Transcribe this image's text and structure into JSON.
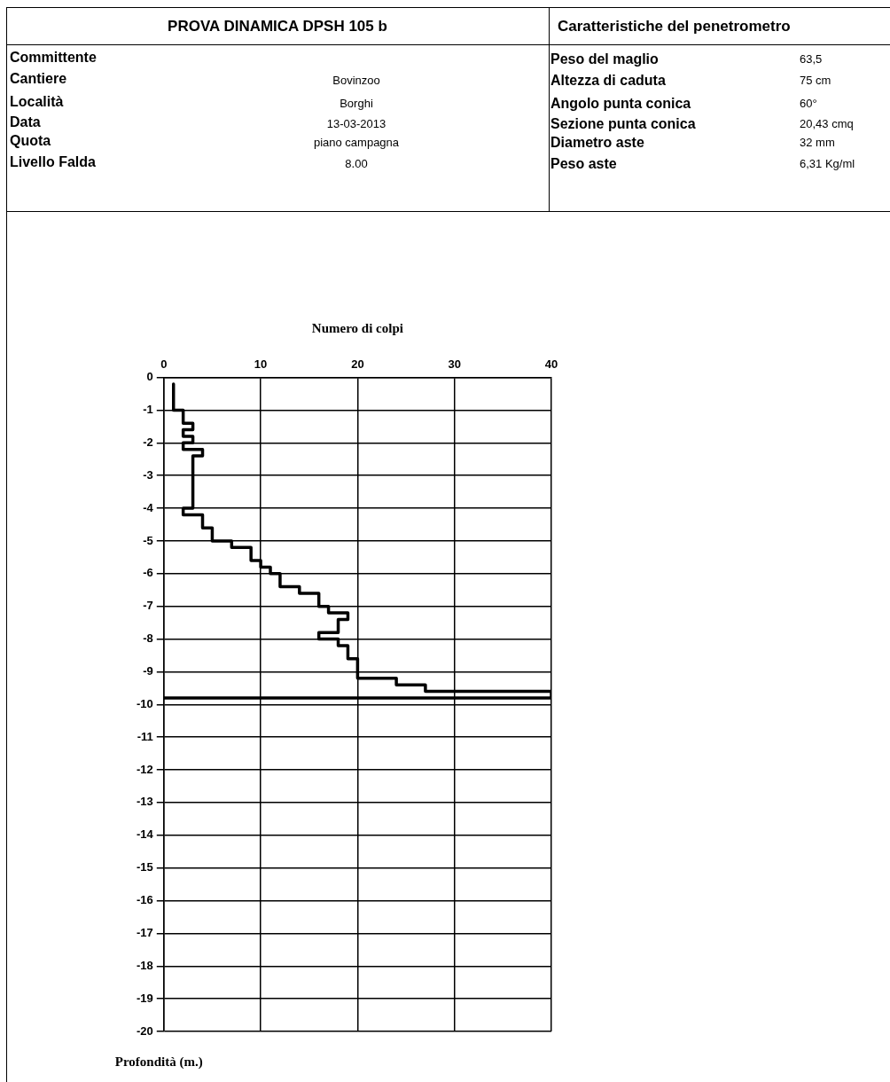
{
  "chart_data": {
    "type": "step",
    "orientation": "horizontal",
    "title": "PROVA DINAMICA DPSH 105 b",
    "xlabel": "Numero di colpi",
    "ylabel": "Profondità (m.)",
    "annotations": [
      "Caratteristiche del penetrometro",
      "Committente",
      "Cantiere",
      "Bovinzoo",
      "Località",
      "Borghi",
      "Data",
      "13-03-2013",
      "Quota",
      "piano campagna",
      "Livello Falda",
      "8.00",
      "Peso del maglio",
      "63,5",
      "Altezza di caduta",
      "75 cm",
      "Angolo punta conica",
      "60°",
      "Sezione punta conica",
      "20,43 cmq",
      "Diametro aste",
      "32 mm",
      "Peso aste",
      "6,31 Kg/ml"
    ],
    "x": [
      -0.2,
      -1.0,
      -1.4,
      -1.6,
      -1.8,
      -2.0,
      -2.2,
      -2.4,
      -4.0,
      -4.2,
      -4.6,
      -5.0,
      -5.2,
      -5.6,
      -5.8,
      -6.0,
      -6.4,
      -6.6,
      -7.0,
      -7.2,
      -7.4,
      -7.8,
      -8.0,
      -8.2,
      -8.6,
      -9.2,
      -9.4,
      -9.6,
      -9.8
    ],
    "values": [
      1,
      2,
      3,
      2,
      3,
      2,
      4,
      3,
      2,
      4,
      5,
      7,
      9,
      10,
      11,
      12,
      14,
      16,
      17,
      19,
      18,
      16,
      18,
      19,
      20,
      24,
      27,
      40,
      0
    ],
    "color": "#000000",
    "xlim": [
      0,
      40
    ],
    "xticks": [
      0,
      10,
      20,
      30,
      40
    ],
    "ylim": [
      -20,
      0
    ],
    "yticks": [
      0,
      -1,
      -2,
      -3,
      -4,
      -5,
      -6,
      -7,
      -8,
      -9,
      -10,
      -11,
      -12,
      -13,
      -14,
      -15,
      -16,
      -17,
      -18,
      -19,
      -20
    ],
    "grid": true,
    "legend": false
  }
}
